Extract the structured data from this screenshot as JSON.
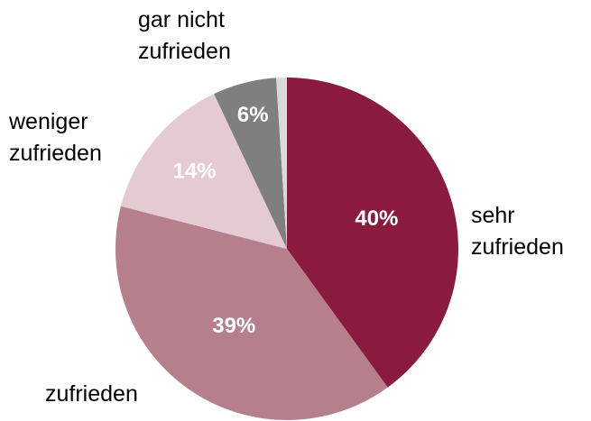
{
  "chart_data": {
    "type": "pie",
    "categories": [
      "sehr\nzufrieden",
      "zufrieden",
      "weniger\nzufrieden",
      "gar nicht\nzufrieden",
      null
    ],
    "values": [
      40,
      39,
      14,
      6,
      1
    ],
    "value_labels": [
      "40%",
      "39%",
      "14%",
      "6%",
      null
    ],
    "colors": [
      "#8b1a3f",
      "#b67f8c",
      "#e4cbd2",
      "#7f7f7f",
      "#d9d9d9"
    ]
  }
}
